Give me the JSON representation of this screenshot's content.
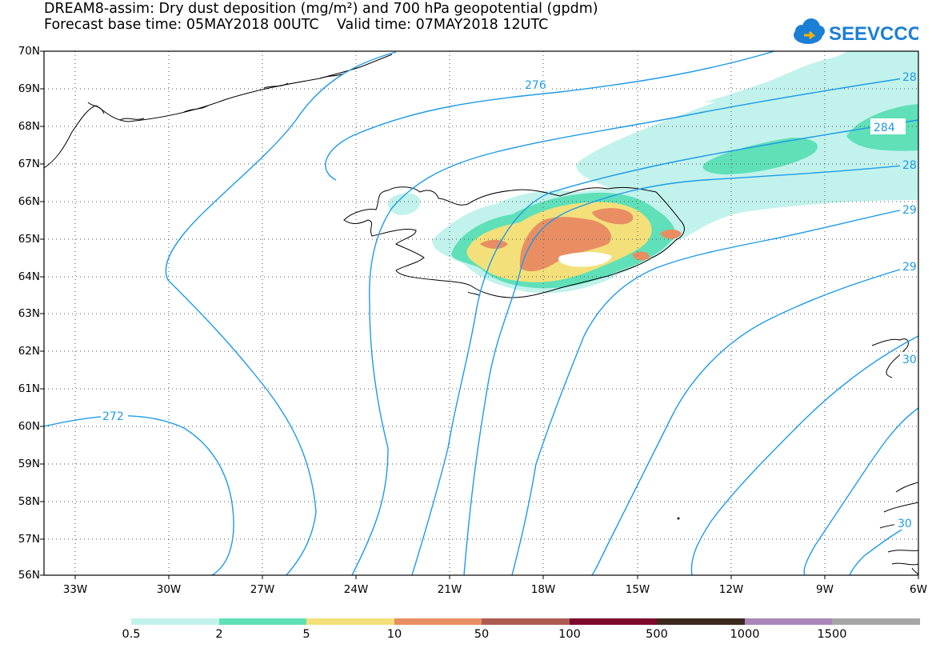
{
  "title_line1": "DREAM8-assim: Dry dust deposition (mg/m²) and 700 hPa geopotential (gpdm)",
  "title_line2": "Forecast base time: 05MAY2018 00UTC    Valid time: 07MAY2018 12UTC",
  "logo_text": "SEEVCCC",
  "map": {
    "lat_labels": [
      "70N",
      "69N",
      "68N",
      "67N",
      "66N",
      "65N",
      "64N",
      "63N",
      "62N",
      "61N",
      "60N",
      "59N",
      "58N",
      "57N",
      "56N"
    ],
    "lon_labels": [
      "33W",
      "30W",
      "27W",
      "24W",
      "21W",
      "18W",
      "15W",
      "12W",
      "9W",
      "6W"
    ],
    "region": {
      "lon_min": -34,
      "lon_max": -6,
      "lat_min": 56,
      "lat_max": 70
    },
    "contour_color": "#1e9be6",
    "contour_labels": [
      "276",
      "28",
      "284",
      "28",
      "29",
      "29",
      "30",
      "30",
      "272"
    ]
  },
  "colorbar": {
    "thresholds": [
      "0.5",
      "2",
      "5",
      "10",
      "50",
      "100",
      "500",
      "1000",
      "1500"
    ],
    "colors": [
      "#c2f2ec",
      "#5fe0b8",
      "#f3e07a",
      "#e98e63",
      "#ad5b52",
      "#7d0a2c",
      "#3c281c",
      "#a985b9",
      "#a6a6a6"
    ]
  }
}
